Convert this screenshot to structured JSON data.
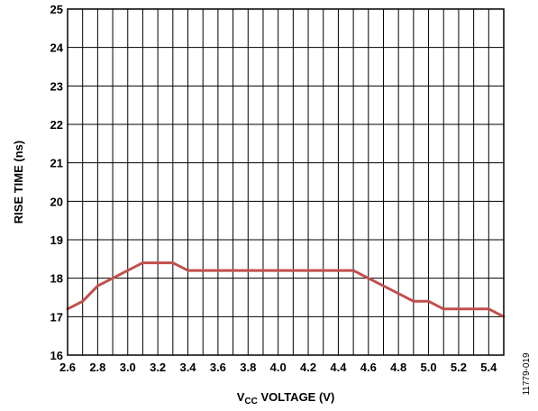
{
  "figure_id": "11779-019",
  "chart_data": {
    "type": "line",
    "title": "",
    "xlabel": {
      "prefix": "V",
      "subscript": "CC",
      "suffix": " VOLTAGE (V)"
    },
    "ylabel": "RISE TIME (ns)",
    "xlim": [
      2.6,
      5.5
    ],
    "ylim": [
      16,
      25
    ],
    "x_ticks": [
      "2.6",
      "2.8",
      "3.0",
      "3.2",
      "3.4",
      "3.6",
      "3.8",
      "4.0",
      "4.2",
      "4.4",
      "4.6",
      "4.8",
      "5.0",
      "5.2",
      "5.4"
    ],
    "y_ticks": [
      "16",
      "17",
      "18",
      "19",
      "20",
      "21",
      "22",
      "23",
      "24",
      "25"
    ],
    "grid": {
      "x_step": 0.1,
      "y_step": 1
    },
    "series": [
      {
        "color": "#c0504d",
        "x": [
          2.6,
          2.7,
          2.8,
          2.9,
          3.0,
          3.1,
          3.2,
          3.3,
          3.4,
          3.5,
          3.6,
          3.7,
          3.8,
          3.9,
          4.0,
          4.1,
          4.2,
          4.3,
          4.4,
          4.5,
          4.6,
          4.7,
          4.8,
          4.9,
          5.0,
          5.1,
          5.2,
          5.3,
          5.4,
          5.5
        ],
        "y": [
          17.2,
          17.4,
          17.8,
          18.0,
          18.2,
          18.4,
          18.4,
          18.4,
          18.2,
          18.2,
          18.2,
          18.2,
          18.2,
          18.2,
          18.2,
          18.2,
          18.2,
          18.2,
          18.2,
          18.2,
          18.0,
          17.8,
          17.6,
          17.4,
          17.4,
          17.2,
          17.2,
          17.2,
          17.2,
          17.0
        ]
      }
    ]
  }
}
